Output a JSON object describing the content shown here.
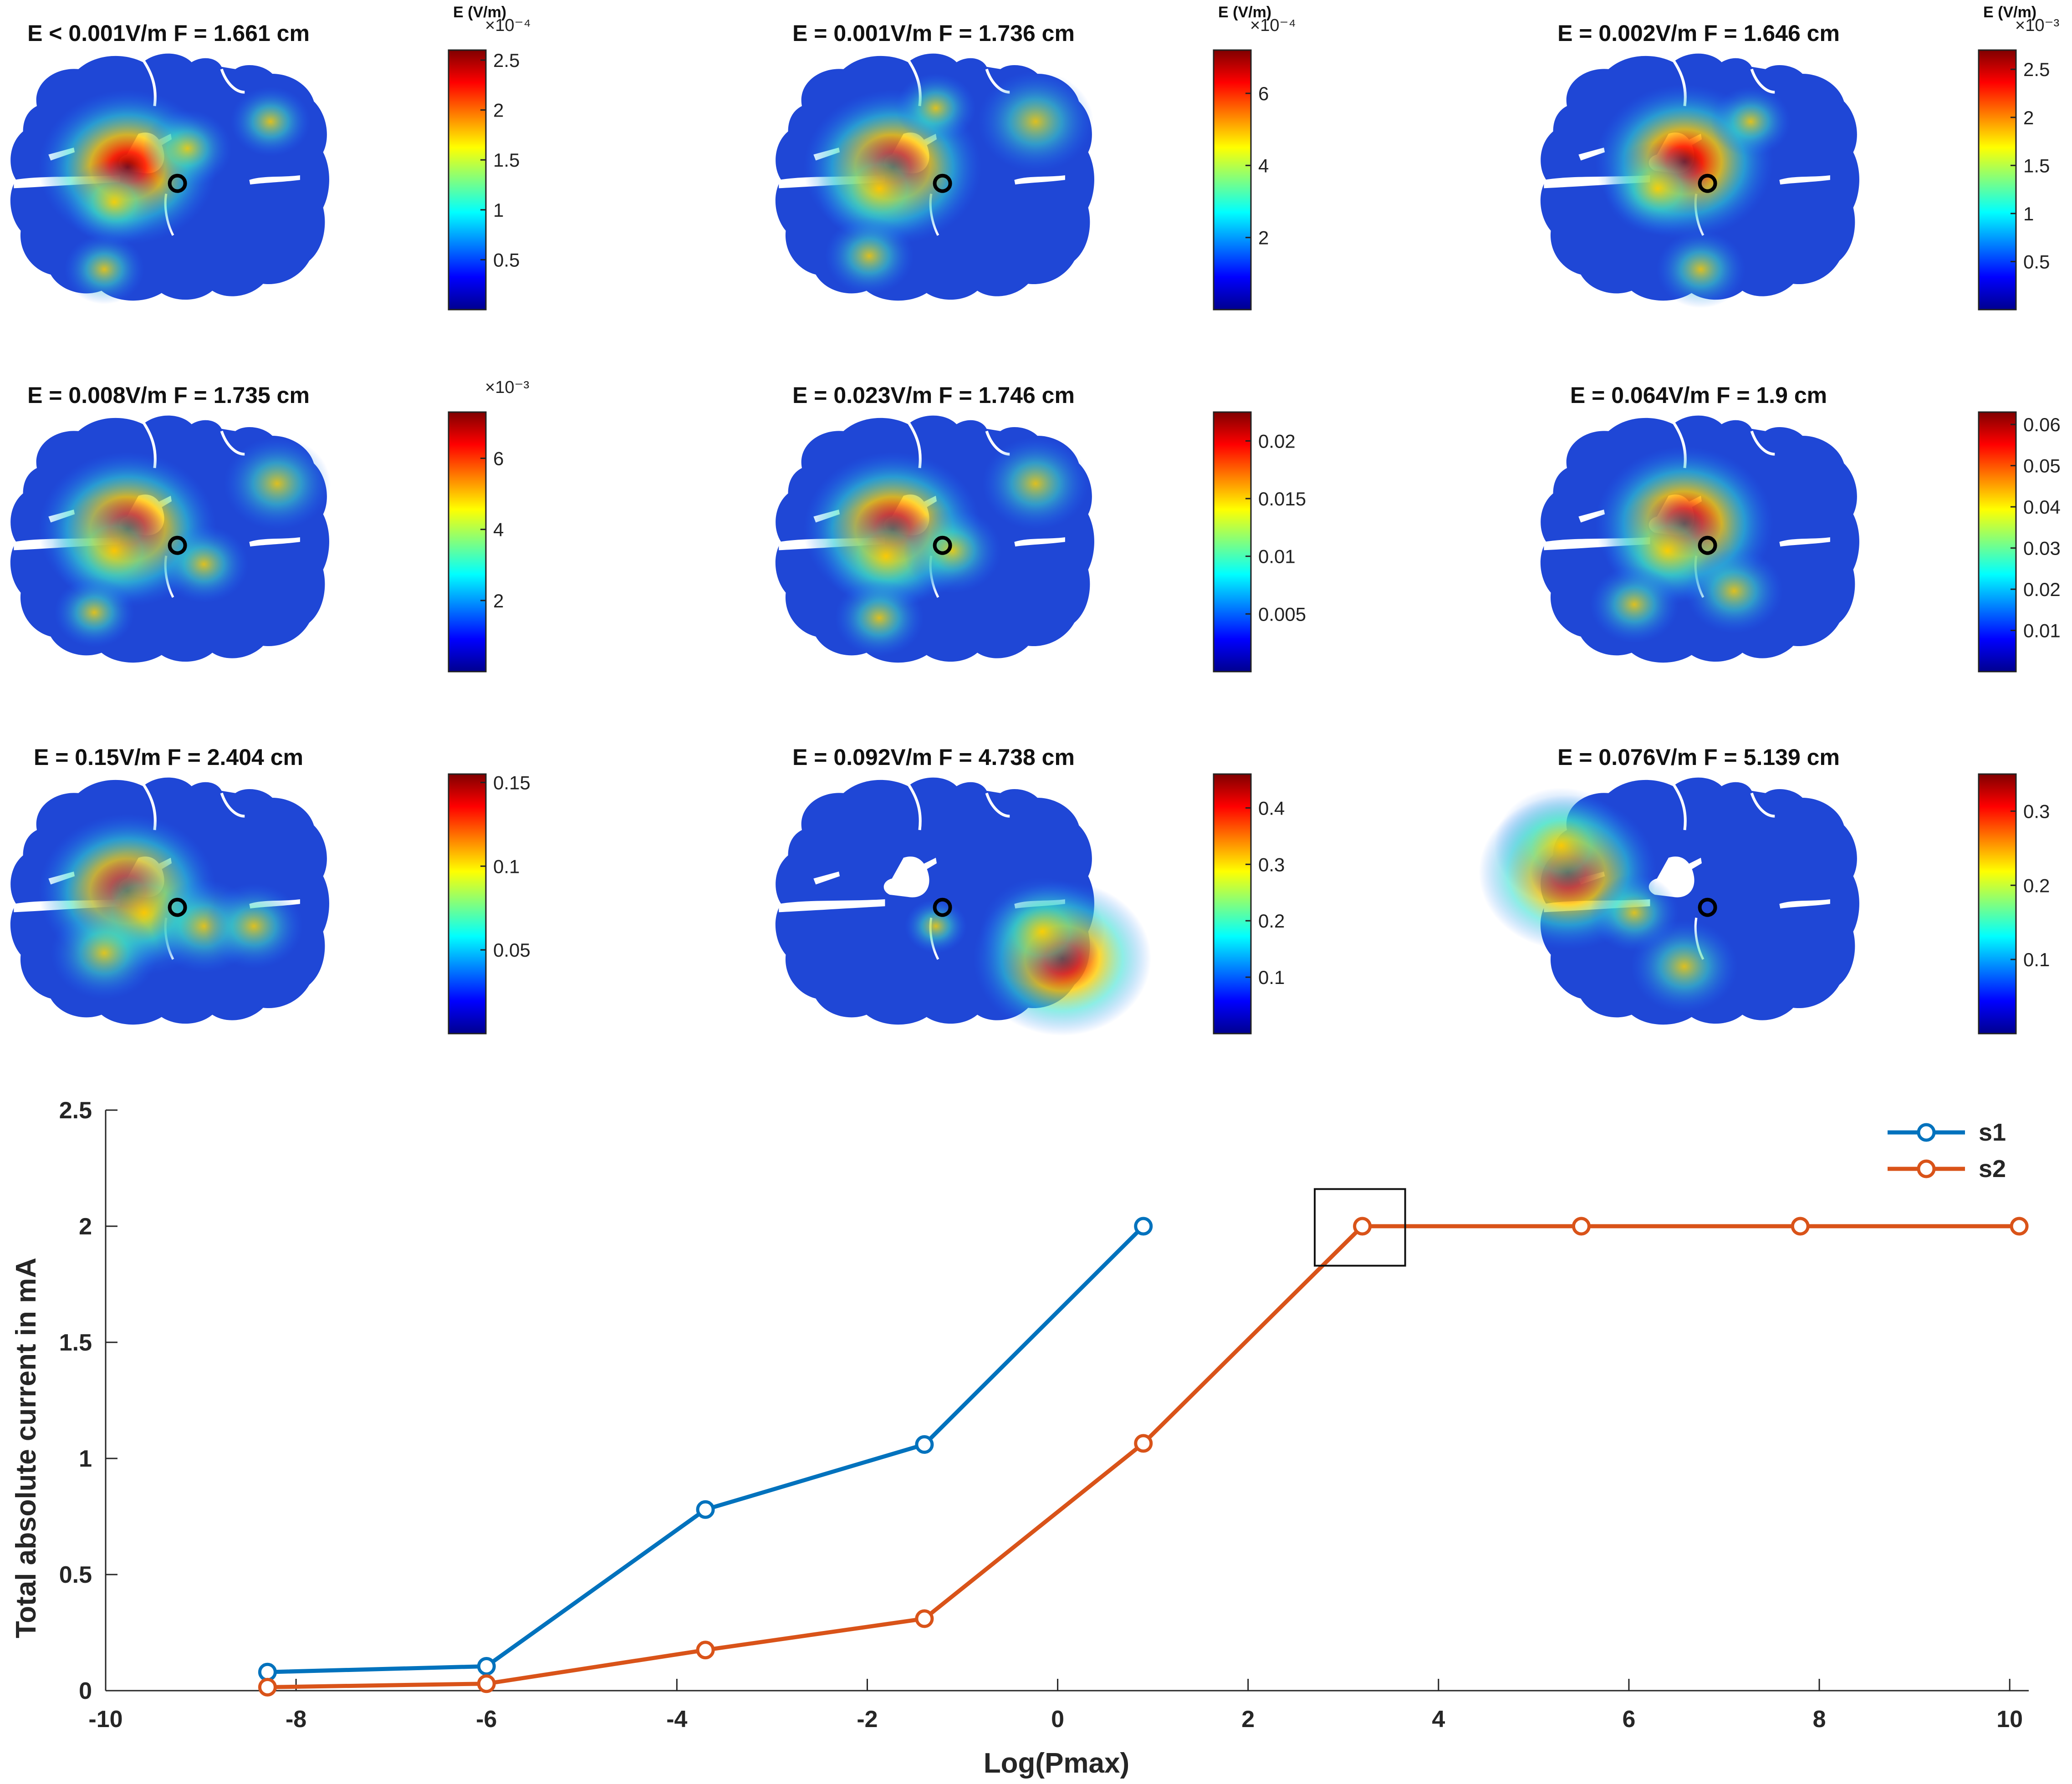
{
  "colorbar_title": "E (V/m)",
  "panels": [
    {
      "title": "E < 0.001V/m  F = 1.661 cm",
      "ticks": [
        "0.5",
        "1",
        "1.5",
        "2",
        "2.5"
      ],
      "tick_values": [
        0.5,
        1,
        1.5,
        2,
        2.5
      ],
      "cmax": 2.6,
      "exponent": "×10⁻⁴",
      "show_cb_title": true,
      "hot": [
        [
          0.37,
          0.47,
          1.0
        ],
        [
          0.33,
          0.6,
          0.55
        ],
        [
          0.8,
          0.3,
          0.45
        ],
        [
          0.55,
          0.4,
          0.5
        ],
        [
          0.3,
          0.85,
          0.45
        ]
      ],
      "marker": true
    },
    {
      "title": "E = 0.001V/m  F = 1.736 cm",
      "ticks": [
        "2",
        "4",
        "6"
      ],
      "tick_values": [
        2,
        4,
        6
      ],
      "cmax": 7.2,
      "exponent": "×10⁻⁴",
      "show_cb_title": true,
      "hot": [
        [
          0.37,
          0.47,
          1.0
        ],
        [
          0.33,
          0.55,
          0.7
        ],
        [
          0.8,
          0.3,
          0.65
        ],
        [
          0.3,
          0.8,
          0.5
        ],
        [
          0.5,
          0.25,
          0.45
        ]
      ],
      "marker": true
    },
    {
      "title": "E = 0.002V/m  F = 1.646 cm",
      "ticks": [
        "0.5",
        "1",
        "1.5",
        "2",
        "2.5"
      ],
      "tick_values": [
        0.5,
        1,
        1.5,
        2,
        2.5
      ],
      "cmax": 2.7,
      "exponent": "×10⁻³",
      "show_cb_title": true,
      "hot": [
        [
          0.45,
          0.45,
          1.0
        ],
        [
          0.37,
          0.55,
          0.6
        ],
        [
          0.5,
          0.85,
          0.5
        ],
        [
          0.65,
          0.3,
          0.45
        ]
      ],
      "marker": true
    },
    {
      "title": "E = 0.008V/m  F = 1.735 cm",
      "ticks": [
        "2",
        "4",
        "6"
      ],
      "tick_values": [
        2,
        4,
        6
      ],
      "cmax": 7.3,
      "exponent": "×10⁻³",
      "show_cb_title": false,
      "hot": [
        [
          0.37,
          0.47,
          1.0
        ],
        [
          0.33,
          0.55,
          0.7
        ],
        [
          0.82,
          0.3,
          0.6
        ],
        [
          0.27,
          0.78,
          0.45
        ],
        [
          0.6,
          0.6,
          0.5
        ]
      ],
      "marker": true
    },
    {
      "title": "E = 0.023V/m  F = 1.746 cm",
      "ticks": [
        "0.005",
        "0.01",
        "0.015",
        "0.02"
      ],
      "tick_values": [
        0.005,
        0.01,
        0.015,
        0.02
      ],
      "cmax": 0.0225,
      "exponent": "",
      "show_cb_title": false,
      "hot": [
        [
          0.37,
          0.47,
          1.0
        ],
        [
          0.35,
          0.57,
          0.7
        ],
        [
          0.8,
          0.3,
          0.6
        ],
        [
          0.33,
          0.8,
          0.5
        ],
        [
          0.55,
          0.55,
          0.55
        ]
      ],
      "marker": true
    },
    {
      "title": "E = 0.064V/m  F = 1.9 cm",
      "ticks": [
        "0.01",
        "0.02",
        "0.03",
        "0.04",
        "0.05",
        "0.06"
      ],
      "tick_values": [
        0.01,
        0.02,
        0.03,
        0.04,
        0.05,
        0.06
      ],
      "cmax": 0.063,
      "exponent": "",
      "show_cb_title": false,
      "hot": [
        [
          0.45,
          0.45,
          1.0
        ],
        [
          0.4,
          0.55,
          0.7
        ],
        [
          0.6,
          0.7,
          0.55
        ],
        [
          0.3,
          0.75,
          0.5
        ]
      ],
      "marker": true
    },
    {
      "title": "E = 0.15V/m  F = 2.404 cm",
      "ticks": [
        "0.05",
        "0.1",
        "0.15"
      ],
      "tick_values": [
        0.05,
        0.1,
        0.15
      ],
      "cmax": 0.155,
      "exponent": "",
      "show_cb_title": false,
      "hot": [
        [
          0.37,
          0.47,
          1.0
        ],
        [
          0.42,
          0.55,
          0.8
        ],
        [
          0.6,
          0.6,
          0.6
        ],
        [
          0.3,
          0.7,
          0.6
        ],
        [
          0.75,
          0.6,
          0.55
        ]
      ],
      "marker": true
    },
    {
      "title": "E = 0.092V/m  F = 4.738 cm",
      "ticks": [
        "0.1",
        "0.2",
        "0.3",
        "0.4"
      ],
      "tick_values": [
        0.1,
        0.2,
        0.3,
        0.4
      ],
      "cmax": 0.46,
      "exponent": "",
      "show_cb_title": false,
      "hot": [
        [
          0.88,
          0.72,
          1.0
        ],
        [
          0.82,
          0.62,
          0.7
        ],
        [
          0.5,
          0.6,
          0.35
        ]
      ],
      "marker": true
    },
    {
      "title": "E = 0.076V/m  F = 5.139 cm",
      "ticks": [
        "0.1",
        "0.2",
        "0.3"
      ],
      "tick_values": [
        0.1,
        0.2,
        0.3
      ],
      "cmax": 0.35,
      "exponent": "",
      "show_cb_title": false,
      "hot": [
        [
          0.1,
          0.4,
          1.0
        ],
        [
          0.08,
          0.3,
          0.75
        ],
        [
          0.45,
          0.75,
          0.6
        ],
        [
          0.3,
          0.55,
          0.5
        ]
      ],
      "marker": true
    }
  ],
  "chart_data": {
    "type": "line",
    "title": "",
    "xlabel": "Log(Pmax)",
    "ylabel": "Total absolute current in mA",
    "xlim": [
      -10,
      10.2
    ],
    "ylim": [
      0,
      2.5
    ],
    "xticks": [
      -10,
      -8,
      -6,
      -4,
      -2,
      0,
      2,
      4,
      6,
      8,
      10
    ],
    "yticks": [
      0,
      0.5,
      1,
      1.5,
      2,
      2.5
    ],
    "xtick_labels": [
      "-10",
      "-8",
      "-6",
      "-4",
      "-2",
      "0",
      "2",
      "4",
      "6",
      "8",
      "10"
    ],
    "ytick_labels": [
      "0",
      "0.5",
      "1",
      "1.5",
      "2",
      "2.5"
    ],
    "grid": false,
    "legend_position": "top-right",
    "series": [
      {
        "name": "s1",
        "color": "#0072BD",
        "x": [
          -8.3,
          -6.0,
          -3.7,
          -1.4,
          0.9
        ],
        "y": [
          0.08,
          0.105,
          0.78,
          1.06,
          2.0
        ]
      },
      {
        "name": "s2",
        "color": "#D95319",
        "x": [
          -8.3,
          -6.0,
          -3.7,
          -1.4,
          0.9,
          3.2,
          5.5,
          7.8,
          10.1
        ],
        "y": [
          0.015,
          0.03,
          0.175,
          0.31,
          1.065,
          2.0,
          2.0,
          2.0,
          2.0
        ]
      }
    ],
    "highlight_box": {
      "x": [
        2.7,
        3.65
      ],
      "y": [
        1.83,
        2.16
      ]
    }
  }
}
